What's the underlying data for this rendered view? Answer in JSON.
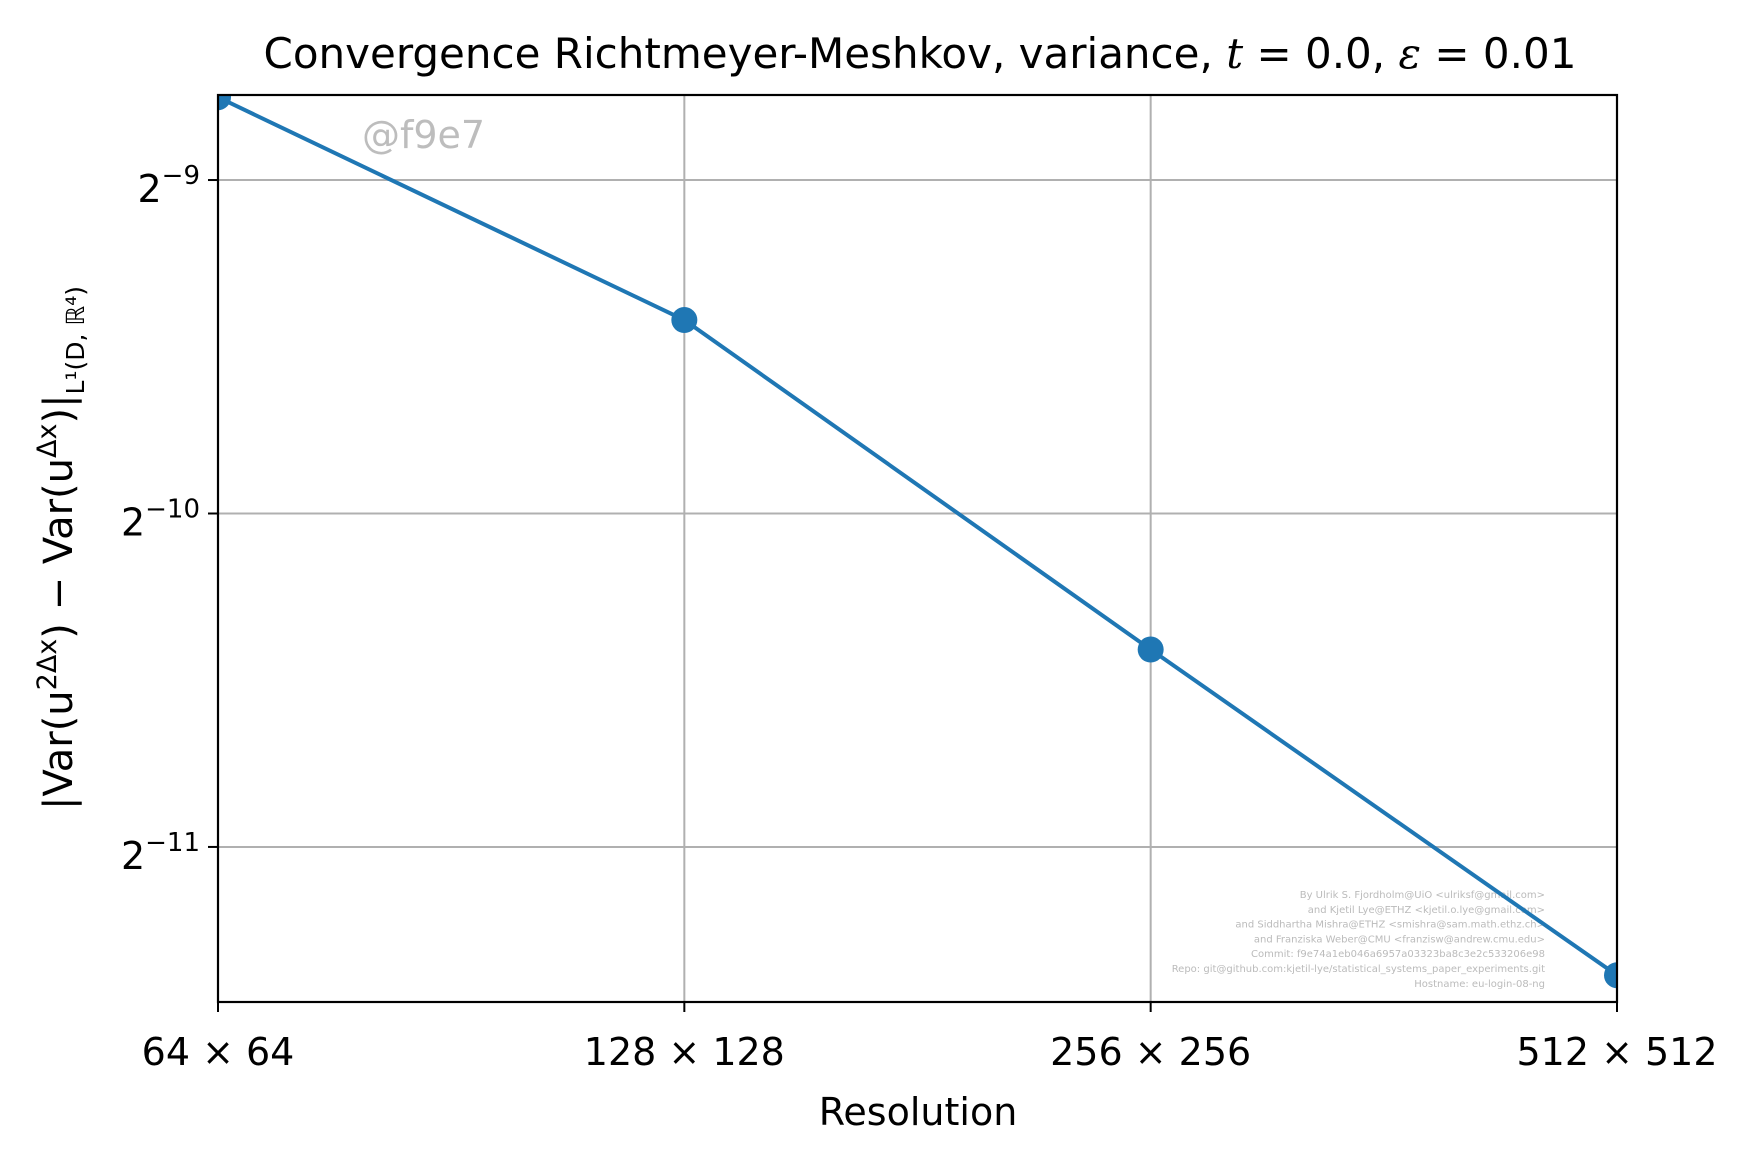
{
  "chart_data": {
    "type": "line",
    "title": {
      "main": "Convergence Richtmeyer-Meshkov, variance, ",
      "t_var": "t",
      "t_val": " = 0.0, ",
      "eps_var": "ε",
      "eps_val": " = 0.01"
    },
    "xlabel": "Resolution",
    "ylabel": {
      "main": "|Var(u",
      "sup1": "2Δx",
      "mid": ") − Var(u",
      "sup2": "Δx",
      "end": ")|",
      "sub": "L¹(D, ℝ⁴)"
    },
    "x_scale": "log2",
    "y_scale": "log2",
    "x": [
      64,
      128,
      256,
      512
    ],
    "x_tick_labels": [
      "64 × 64",
      "128 × 128",
      "256 × 256",
      "512 × 512"
    ],
    "y_ticks": [
      {
        "exp": -9,
        "label_base": "2",
        "label_exp": "−9"
      },
      {
        "exp": -10,
        "label_base": "2",
        "label_exp": "−10"
      },
      {
        "exp": -11,
        "label_base": "2",
        "label_exp": "−11"
      }
    ],
    "series": [
      {
        "values": [
          0.00232,
          0.00146,
          0.000736,
          0.000374
        ],
        "color": "#1f77b4",
        "marker": "circle"
      }
    ],
    "xlim": [
      64,
      512
    ],
    "ylim_log2": [
      -11.465,
      -8.745
    ],
    "grid": true
  },
  "watermark": "@f9e7",
  "credits": [
    "By Ulrik S. Fjordholm@UiO <ulriksf@gmail.com>",
    "and Kjetil Lye@ETHZ <kjetil.o.lye@gmail.com>",
    "and Siddhartha Mishra@ETHZ <smishra@sam.math.ethz.ch>",
    "and Franziska Weber@CMU <franzisw@andrew.cmu.edu>",
    "Commit: f9e74a1eb046a6957a03323ba8c3e2c533206e98",
    "Repo: git@github.com:kjetil-lye/statistical_systems_paper_experiments.git",
    "Hostname: eu-login-08-ng"
  ]
}
